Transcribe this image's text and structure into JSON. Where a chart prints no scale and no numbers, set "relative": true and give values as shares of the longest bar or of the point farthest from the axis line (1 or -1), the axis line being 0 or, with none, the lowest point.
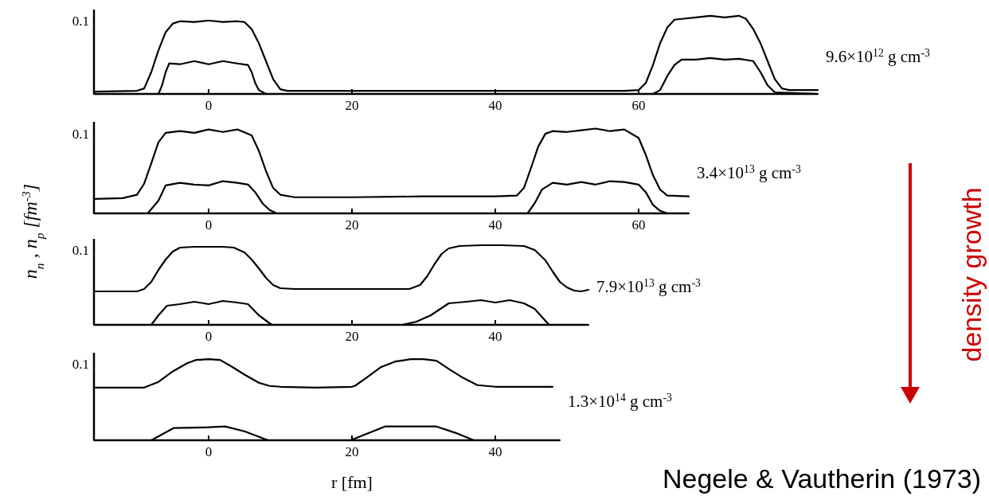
{
  "chart_data": [
    {
      "type": "line",
      "relative": true,
      "xlim": [
        -16,
        85
      ],
      "xticks": [
        0,
        20,
        40,
        60
      ],
      "grid": false,
      "marker": "none",
      "line_style": "solid",
      "annotations": [
        "0.1",
        "9.6×10$^{12}$ g cm$^{-3}$"
      ],
      "series": [
        {
          "color": "#000000",
          "x": [
            -16,
            -10,
            -9,
            -8,
            -7,
            -6,
            -5,
            -4,
            -2,
            0,
            2,
            4,
            5,
            6,
            7,
            8,
            9,
            10,
            11,
            20,
            40,
            58,
            60,
            61,
            62,
            63,
            64,
            65,
            66,
            68,
            70,
            72,
            74,
            75,
            76,
            77,
            78,
            79,
            80,
            81,
            85
          ],
          "values": [
            0.03,
            0.04,
            0.07,
            0.28,
            0.56,
            0.79,
            0.9,
            0.93,
            0.92,
            0.94,
            0.92,
            0.93,
            0.92,
            0.83,
            0.65,
            0.42,
            0.19,
            0.06,
            0.04,
            0.04,
            0.04,
            0.04,
            0.05,
            0.14,
            0.37,
            0.65,
            0.85,
            0.95,
            0.96,
            0.98,
            1,
            0.98,
            1,
            0.96,
            0.83,
            0.65,
            0.42,
            0.19,
            0.07,
            0.05,
            0.05
          ]
        },
        {
          "color": "#000000",
          "x": [
            -16,
            -7,
            -6.5,
            -6,
            -5.5,
            -4,
            -2,
            0,
            2,
            4,
            5.5,
            6,
            6.5,
            7,
            8,
            20,
            40,
            60,
            62,
            63,
            64,
            65,
            66,
            68,
            70,
            72,
            74,
            76,
            77,
            78,
            79,
            85
          ],
          "values": [
            0,
            0,
            0.11,
            0.28,
            0.39,
            0.38,
            0.42,
            0.38,
            0.42,
            0.39,
            0.37,
            0.28,
            0.14,
            0.05,
            0,
            0,
            0,
            0,
            0,
            0.05,
            0.23,
            0.37,
            0.44,
            0.44,
            0.46,
            0.44,
            0.45,
            0.42,
            0.28,
            0.11,
            0.02,
            0
          ]
        }
      ]
    },
    {
      "type": "line",
      "relative": true,
      "xlim": [
        -16,
        67
      ],
      "xticks": [
        0,
        20,
        40,
        60
      ],
      "grid": false,
      "marker": "none",
      "line_style": "solid",
      "ylabel": "n$_{n}$ , n$_{p}$   [fm$^{-3}$]",
      "annotations": [
        "0.1",
        "3.4×10$^{13}$ g cm$^{-3}$",
        "density growth"
      ],
      "series": [
        {
          "color": "#000000",
          "x": [
            -16,
            -12,
            -10,
            -9,
            -8,
            -7,
            -6,
            -4,
            -2,
            0,
            2,
            4,
            6,
            7,
            8,
            9,
            10,
            12,
            20,
            30,
            40,
            43,
            44,
            45,
            46,
            47,
            48,
            50,
            52,
            54,
            56,
            58,
            60,
            61,
            62,
            63,
            64,
            67
          ],
          "values": [
            0.17,
            0.18,
            0.22,
            0.35,
            0.59,
            0.84,
            0.95,
            0.97,
            0.95,
            0.99,
            0.96,
            0.99,
            0.92,
            0.74,
            0.5,
            0.3,
            0.22,
            0.19,
            0.19,
            0.2,
            0.2,
            0.21,
            0.3,
            0.54,
            0.79,
            0.94,
            0.97,
            0.96,
            0.98,
            1,
            0.97,
            0.99,
            0.89,
            0.69,
            0.45,
            0.28,
            0.21,
            0.2
          ]
        },
        {
          "color": "#000000",
          "x": [
            -16,
            -8.5,
            -7,
            -6,
            -4,
            -2,
            0,
            2,
            4,
            5.5,
            6.5,
            7.5,
            8.5,
            9.5,
            20,
            40,
            44.5,
            45.5,
            46.5,
            48,
            50,
            52,
            54,
            56,
            58,
            60,
            61,
            62,
            63,
            64,
            67
          ],
          "values": [
            0,
            0,
            0.15,
            0.33,
            0.36,
            0.34,
            0.33,
            0.38,
            0.36,
            0.34,
            0.25,
            0.12,
            0.04,
            0,
            0,
            0,
            0,
            0.12,
            0.28,
            0.36,
            0.34,
            0.37,
            0.34,
            0.38,
            0.37,
            0.34,
            0.25,
            0.1,
            0.03,
            0,
            0
          ]
        }
      ]
    },
    {
      "type": "line",
      "relative": true,
      "xlim": [
        -16,
        53
      ],
      "xticks": [
        0,
        20,
        40
      ],
      "grid": false,
      "marker": "none",
      "line_style": "solid",
      "annotations": [
        "0.1",
        "7.9×10$^{13}$ g cm$^{-3}$"
      ],
      "series": [
        {
          "color": "#000000",
          "x": [
            -16,
            -10,
            -9,
            -8,
            -7,
            -6,
            -5,
            -4,
            -2,
            0,
            2,
            3.5,
            5,
            6,
            7,
            8,
            9,
            10,
            12,
            20,
            28,
            29.5,
            30.5,
            31.5,
            32.5,
            33.5,
            35,
            38,
            41,
            44,
            45.5,
            47,
            48,
            49,
            50,
            51,
            52,
            53
          ],
          "values": [
            0.42,
            0.42,
            0.45,
            0.54,
            0.69,
            0.82,
            0.92,
            0.97,
            0.98,
            0.98,
            0.98,
            0.97,
            0.91,
            0.82,
            0.71,
            0.59,
            0.5,
            0.46,
            0.45,
            0.45,
            0.45,
            0.5,
            0.61,
            0.76,
            0.89,
            0.96,
            0.99,
            1,
            1,
            0.99,
            0.94,
            0.81,
            0.67,
            0.54,
            0.47,
            0.43,
            0.42,
            0.44
          ]
        },
        {
          "color": "#000000",
          "x": [
            -16,
            -8,
            -7,
            -5.8,
            -4,
            -2,
            0,
            2,
            4,
            5.5,
            7,
            8.8,
            20,
            27,
            29,
            31,
            33.5,
            36,
            38,
            40,
            42,
            44,
            45.5,
            47.5,
            53
          ],
          "values": [
            0,
            0,
            0.12,
            0.24,
            0.26,
            0.29,
            0.26,
            0.3,
            0.28,
            0.26,
            0.12,
            0,
            0,
            0,
            0.04,
            0.12,
            0.27,
            0.29,
            0.31,
            0.28,
            0.31,
            0.27,
            0.2,
            0,
            0
          ]
        }
      ]
    },
    {
      "type": "line",
      "relative": true,
      "xlim": [
        -16,
        49
      ],
      "xticks": [
        0,
        20,
        40
      ],
      "grid": false,
      "marker": "none",
      "line_style": "solid",
      "xlabel": "r   [fm]",
      "annotations": [
        "0.1",
        "1.3×10$^{14}$ g cm$^{-3}$",
        "Negele & Vautherin (1973)"
      ],
      "series": [
        {
          "color": "#000000",
          "x": [
            -16,
            -9,
            -7,
            -5,
            -3,
            -1.8,
            0,
            1.6,
            3,
            5,
            7,
            8.5,
            10,
            15,
            20,
            20.4,
            22,
            24,
            26,
            28.2,
            30,
            31.8,
            33.5,
            35.5,
            37.5,
            40,
            48
          ],
          "values": [
            0.65,
            0.65,
            0.72,
            0.85,
            0.95,
            0.99,
            1,
            0.99,
            0.92,
            0.81,
            0.71,
            0.67,
            0.66,
            0.65,
            0.66,
            0.67,
            0.77,
            0.9,
            0.97,
            1,
            1,
            0.98,
            0.88,
            0.77,
            0.68,
            0.66,
            0.66
          ]
        },
        {
          "color": "#000000",
          "x": [
            -16,
            -8,
            -4.9,
            0,
            2.3,
            5,
            8.3,
            15,
            19.8,
            24.6,
            28,
            31.8,
            34.5,
            37,
            49
          ],
          "values": [
            0,
            0,
            0.15,
            0.16,
            0.17,
            0.11,
            0,
            0,
            0,
            0.17,
            0.17,
            0.17,
            0.09,
            0,
            0
          ]
        }
      ]
    }
  ]
}
